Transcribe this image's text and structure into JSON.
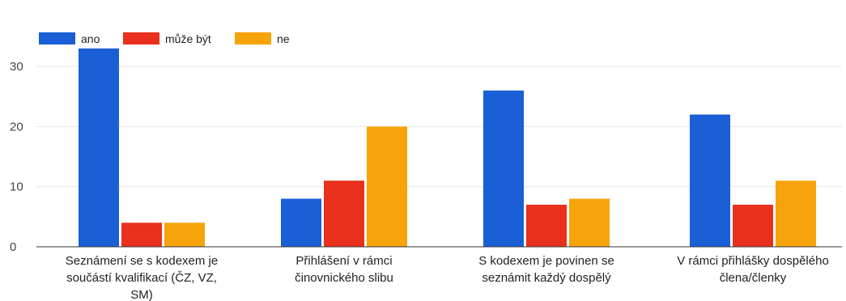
{
  "chart_data": {
    "type": "bar",
    "categories": [
      [
        "Seznámení se s kodexem je",
        "součástí kvalifikací (ČZ, VZ,",
        "SM)"
      ],
      [
        "Přihlášení v rámci",
        "činovnického slibu"
      ],
      [
        "S kodexem je povinen se",
        "seznámit každý dospělý"
      ],
      [
        "V rámci přihlášky dospělého",
        "člena/členky"
      ]
    ],
    "series": [
      {
        "name": "ano",
        "color": "#1a5fd6",
        "values": [
          33,
          8,
          26,
          22
        ]
      },
      {
        "name": "může být",
        "color": "#e8301c",
        "values": [
          4,
          11,
          7,
          7
        ]
      },
      {
        "name": "ne",
        "color": "#f7a30c",
        "values": [
          4,
          20,
          8,
          11
        ]
      }
    ],
    "ylim": [
      0,
      35
    ],
    "yticks": [
      0,
      10,
      20,
      30
    ],
    "grid": true,
    "legend": "top-left"
  }
}
